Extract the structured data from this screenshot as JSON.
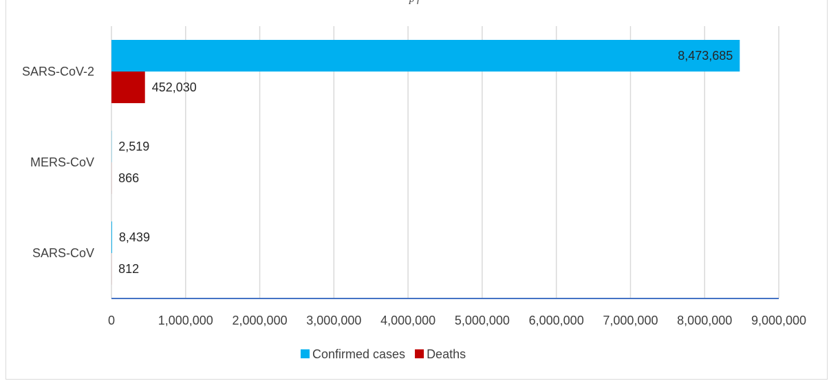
{
  "caption_fragment": "p      f",
  "chart_data": {
    "type": "bar",
    "orientation": "horizontal",
    "categories": [
      "SARS-CoV-2",
      "MERS-CoV",
      "SARS-CoV"
    ],
    "series": [
      {
        "name": "Confirmed cases",
        "color": "#00b0f0",
        "values": [
          8473685,
          2519,
          8439
        ],
        "labels": [
          "8,473,685",
          "2,519",
          "8,439"
        ]
      },
      {
        "name": "Deaths",
        "color": "#c00000",
        "values": [
          452030,
          866,
          812
        ],
        "labels": [
          "452,030",
          "866",
          "812"
        ]
      }
    ],
    "xlim": [
      0,
      9000000
    ],
    "xticks": [
      0,
      1000000,
      2000000,
      3000000,
      4000000,
      5000000,
      6000000,
      7000000,
      8000000,
      9000000
    ],
    "xtick_labels": [
      "0",
      "1,000,000",
      "2,000,000",
      "3,000,000",
      "4,000,000",
      "5,000,000",
      "6,000,000",
      "7,000,000",
      "8,000,000",
      "9,000,000"
    ],
    "grid": true,
    "legend_position": "bottom",
    "axis_color": "#4472c4",
    "grid_color": "#d9d9d9"
  }
}
